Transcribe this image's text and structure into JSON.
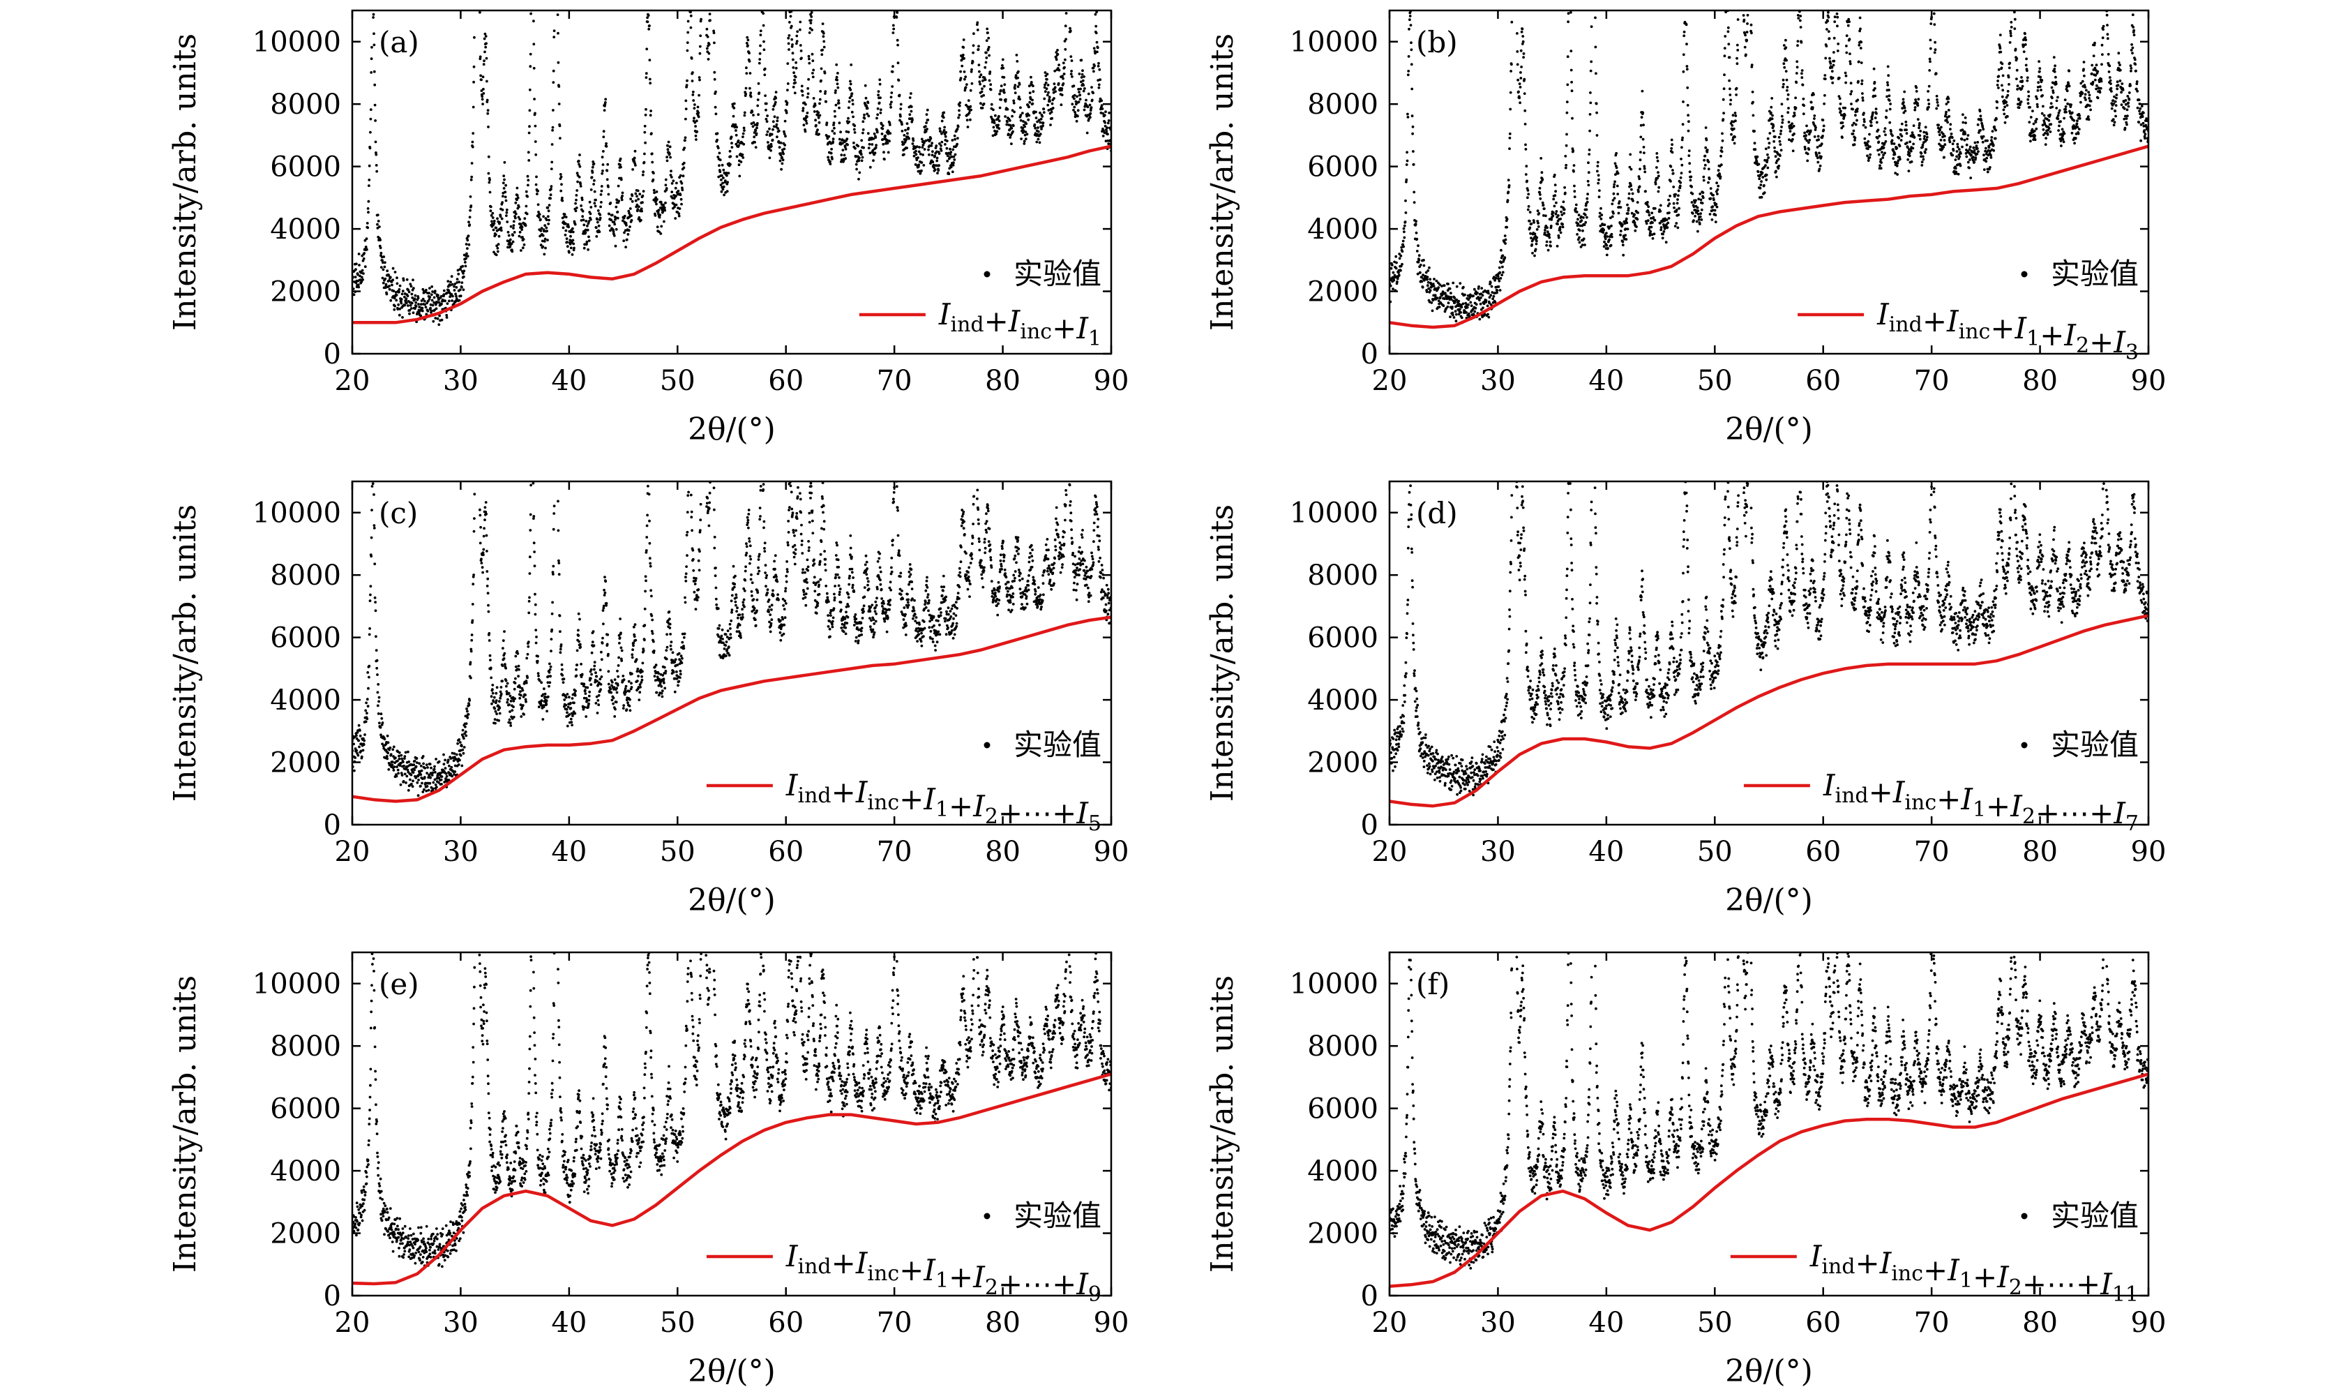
{
  "colors": {
    "fit": "#e01818",
    "points": "#000000",
    "axes": "#000000"
  },
  "chart_data": [
    {
      "type": "scatter",
      "panel": "(a)",
      "title": "",
      "xlabel": "2θ/(°)",
      "ylabel": "Intensity/arb. units",
      "xlim": [
        20,
        90
      ],
      "ylim": [
        0,
        11000
      ],
      "xticks": [
        20,
        30,
        40,
        50,
        60,
        70,
        80,
        90
      ],
      "yticks": [
        0,
        2000,
        4000,
        6000,
        8000,
        10000
      ],
      "legend_position": "bottom-right",
      "series": [
        {
          "name": "实验值",
          "kind": "points"
        },
        {
          "name": "I_ind+I_inc+I_1",
          "kind": "line",
          "label_parts": [
            [
              "I",
              "ind"
            ],
            [
              "+",
              ""
            ],
            [
              "I",
              "inc"
            ],
            [
              "+",
              ""
            ],
            [
              "I",
              "1"
            ]
          ],
          "x": [
            20,
            22,
            24,
            26,
            28,
            30,
            32,
            34,
            36,
            38,
            40,
            42,
            44,
            46,
            48,
            50,
            52,
            54,
            56,
            58,
            60,
            62,
            64,
            66,
            68,
            70,
            72,
            74,
            76,
            78,
            80,
            82,
            84,
            86,
            88,
            90
          ],
          "y": [
            1000,
            1000,
            1000,
            1100,
            1300,
            1600,
            2000,
            2300,
            2550,
            2600,
            2550,
            2450,
            2400,
            2550,
            2900,
            3300,
            3700,
            4050,
            4300,
            4500,
            4650,
            4800,
            4950,
            5100,
            5200,
            5300,
            5400,
            5500,
            5600,
            5700,
            5850,
            6000,
            6150,
            6300,
            6500,
            6650
          ]
        }
      ]
    },
    {
      "type": "scatter",
      "panel": "(b)",
      "title": "",
      "xlabel": "2θ/(°)",
      "ylabel": "Intensity/arb. units",
      "xlim": [
        20,
        90
      ],
      "ylim": [
        0,
        11000
      ],
      "xticks": [
        20,
        30,
        40,
        50,
        60,
        70,
        80,
        90
      ],
      "yticks": [
        0,
        2000,
        4000,
        6000,
        8000,
        10000
      ],
      "legend_position": "bottom-right",
      "series": [
        {
          "name": "实验值",
          "kind": "points"
        },
        {
          "name": "I_ind+I_inc+I_1+I_2+I_3",
          "kind": "line",
          "label_parts": [
            [
              "I",
              "ind"
            ],
            [
              "+",
              ""
            ],
            [
              "I",
              "inc"
            ],
            [
              "+",
              ""
            ],
            [
              "I",
              "1"
            ],
            [
              "+",
              ""
            ],
            [
              "I",
              "2"
            ],
            [
              "+",
              ""
            ],
            [
              "I",
              "3"
            ]
          ],
          "x": [
            20,
            22,
            24,
            26,
            28,
            30,
            32,
            34,
            36,
            38,
            40,
            42,
            44,
            46,
            48,
            50,
            52,
            54,
            56,
            58,
            60,
            62,
            64,
            66,
            68,
            70,
            72,
            74,
            76,
            78,
            80,
            82,
            84,
            86,
            88,
            90
          ],
          "y": [
            1000,
            900,
            850,
            900,
            1200,
            1600,
            2000,
            2300,
            2450,
            2500,
            2500,
            2500,
            2600,
            2800,
            3200,
            3700,
            4100,
            4400,
            4550,
            4650,
            4750,
            4850,
            4900,
            4950,
            5050,
            5100,
            5200,
            5250,
            5300,
            5450,
            5650,
            5850,
            6050,
            6250,
            6450,
            6650
          ]
        }
      ]
    },
    {
      "type": "scatter",
      "panel": "(c)",
      "title": "",
      "xlabel": "2θ/(°)",
      "ylabel": "Intensity/arb. units",
      "xlim": [
        20,
        90
      ],
      "ylim": [
        0,
        11000
      ],
      "xticks": [
        20,
        30,
        40,
        50,
        60,
        70,
        80,
        90
      ],
      "yticks": [
        0,
        2000,
        4000,
        6000,
        8000,
        10000
      ],
      "legend_position": "bottom-right",
      "series": [
        {
          "name": "实验值",
          "kind": "points"
        },
        {
          "name": "I_ind+I_inc+I_1+I_2+⋯+I_5",
          "kind": "line",
          "label_parts": [
            [
              "I",
              "ind"
            ],
            [
              "+",
              ""
            ],
            [
              "I",
              "inc"
            ],
            [
              "+",
              ""
            ],
            [
              "I",
              "1"
            ],
            [
              "+",
              ""
            ],
            [
              "I",
              "2"
            ],
            [
              "+⋯+",
              ""
            ],
            [
              "I",
              "5"
            ]
          ],
          "x": [
            20,
            22,
            24,
            26,
            28,
            30,
            32,
            34,
            36,
            38,
            40,
            42,
            44,
            46,
            48,
            50,
            52,
            54,
            56,
            58,
            60,
            62,
            64,
            66,
            68,
            70,
            72,
            74,
            76,
            78,
            80,
            82,
            84,
            86,
            88,
            90
          ],
          "y": [
            900,
            800,
            750,
            800,
            1100,
            1600,
            2100,
            2400,
            2500,
            2550,
            2550,
            2600,
            2700,
            3000,
            3350,
            3700,
            4050,
            4300,
            4450,
            4600,
            4700,
            4800,
            4900,
            5000,
            5100,
            5150,
            5250,
            5350,
            5450,
            5600,
            5800,
            6000,
            6200,
            6400,
            6550,
            6650
          ]
        }
      ]
    },
    {
      "type": "scatter",
      "panel": "(d)",
      "title": "",
      "xlabel": "2θ/(°)",
      "ylabel": "Intensity/arb. units",
      "xlim": [
        20,
        90
      ],
      "ylim": [
        0,
        11000
      ],
      "xticks": [
        20,
        30,
        40,
        50,
        60,
        70,
        80,
        90
      ],
      "yticks": [
        0,
        2000,
        4000,
        6000,
        8000,
        10000
      ],
      "legend_position": "bottom-right",
      "series": [
        {
          "name": "实验值",
          "kind": "points"
        },
        {
          "name": "I_ind+I_inc+I_1+I_2+⋯+I_7",
          "kind": "line",
          "label_parts": [
            [
              "I",
              "ind"
            ],
            [
              "+",
              ""
            ],
            [
              "I",
              "inc"
            ],
            [
              "+",
              ""
            ],
            [
              "I",
              "1"
            ],
            [
              "+",
              ""
            ],
            [
              "I",
              "2"
            ],
            [
              "+⋯+",
              ""
            ],
            [
              "I",
              "7"
            ]
          ],
          "x": [
            20,
            22,
            24,
            26,
            28,
            30,
            32,
            34,
            36,
            38,
            40,
            42,
            44,
            46,
            48,
            50,
            52,
            54,
            56,
            58,
            60,
            62,
            64,
            66,
            68,
            70,
            72,
            74,
            76,
            78,
            80,
            82,
            84,
            86,
            88,
            90
          ],
          "y": [
            750,
            650,
            600,
            700,
            1100,
            1700,
            2250,
            2600,
            2750,
            2750,
            2650,
            2500,
            2450,
            2600,
            2950,
            3350,
            3750,
            4100,
            4400,
            4650,
            4850,
            5000,
            5100,
            5150,
            5150,
            5150,
            5150,
            5150,
            5250,
            5450,
            5700,
            5950,
            6200,
            6400,
            6550,
            6700
          ]
        }
      ]
    },
    {
      "type": "scatter",
      "panel": "(e)",
      "title": "",
      "xlabel": "2θ/(°)",
      "ylabel": "Intensity/arb. units",
      "xlim": [
        20,
        90
      ],
      "ylim": [
        0,
        11000
      ],
      "xticks": [
        20,
        30,
        40,
        50,
        60,
        70,
        80,
        90
      ],
      "yticks": [
        0,
        2000,
        4000,
        6000,
        8000,
        10000
      ],
      "legend_position": "bottom-right",
      "series": [
        {
          "name": "实验值",
          "kind": "points"
        },
        {
          "name": "I_ind+I_inc+I_1+I_2+⋯+I_9",
          "kind": "line",
          "label_parts": [
            [
              "I",
              "ind"
            ],
            [
              "+",
              ""
            ],
            [
              "I",
              "inc"
            ],
            [
              "+",
              ""
            ],
            [
              "I",
              "1"
            ],
            [
              "+",
              ""
            ],
            [
              "I",
              "2"
            ],
            [
              "+⋯+",
              ""
            ],
            [
              "I",
              "9"
            ]
          ],
          "x": [
            20,
            22,
            24,
            26,
            28,
            30,
            32,
            34,
            36,
            38,
            40,
            42,
            44,
            46,
            48,
            50,
            52,
            54,
            56,
            58,
            60,
            62,
            64,
            66,
            68,
            70,
            72,
            74,
            76,
            78,
            80,
            82,
            84,
            86,
            88,
            90
          ],
          "y": [
            400,
            380,
            420,
            700,
            1300,
            2100,
            2800,
            3200,
            3350,
            3200,
            2800,
            2400,
            2250,
            2450,
            2900,
            3450,
            4000,
            4500,
            4950,
            5300,
            5550,
            5700,
            5800,
            5800,
            5700,
            5600,
            5500,
            5550,
            5700,
            5900,
            6100,
            6300,
            6500,
            6700,
            6900,
            7100
          ]
        }
      ]
    },
    {
      "type": "scatter",
      "panel": "(f)",
      "title": "",
      "xlabel": "2θ/(°)",
      "ylabel": "Intensity/arb. units",
      "xlim": [
        20,
        90
      ],
      "ylim": [
        0,
        11000
      ],
      "xticks": [
        20,
        30,
        40,
        50,
        60,
        70,
        80,
        90
      ],
      "yticks": [
        0,
        2000,
        4000,
        6000,
        8000,
        10000
      ],
      "legend_position": "bottom-right",
      "series": [
        {
          "name": "实验值",
          "kind": "points"
        },
        {
          "name": "I_ind+I_inc+I_1+I_2+⋯+I_11",
          "kind": "line",
          "label_parts": [
            [
              "I",
              "ind"
            ],
            [
              "+",
              ""
            ],
            [
              "I",
              "inc"
            ],
            [
              "+",
              ""
            ],
            [
              "I",
              "1"
            ],
            [
              "+",
              ""
            ],
            [
              "I",
              "2"
            ],
            [
              "+⋯+",
              ""
            ],
            [
              "I",
              "11"
            ]
          ],
          "x": [
            20,
            22,
            24,
            26,
            28,
            30,
            32,
            34,
            36,
            38,
            40,
            42,
            44,
            46,
            48,
            50,
            52,
            54,
            56,
            58,
            60,
            62,
            64,
            66,
            68,
            70,
            72,
            74,
            76,
            78,
            80,
            82,
            84,
            86,
            88,
            90
          ],
          "y": [
            300,
            350,
            450,
            750,
            1300,
            2000,
            2700,
            3200,
            3350,
            3100,
            2650,
            2250,
            2100,
            2350,
            2850,
            3450,
            4000,
            4500,
            4950,
            5250,
            5450,
            5600,
            5650,
            5650,
            5600,
            5500,
            5400,
            5400,
            5550,
            5800,
            6050,
            6300,
            6500,
            6700,
            6900,
            7100
          ]
        }
      ]
    }
  ]
}
